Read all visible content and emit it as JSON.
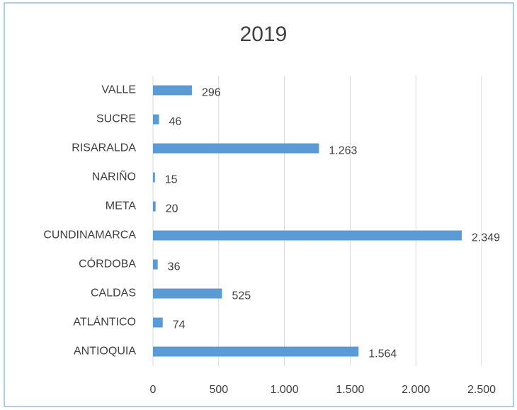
{
  "chart_data": {
    "type": "bar",
    "orientation": "horizontal",
    "title": "2019",
    "categories": [
      "ANTIOQUIA",
      "ATLÁNTICO",
      "CALDAS",
      "CÓRDOBA",
      "CUNDINAMARCA",
      "META",
      "NARIÑO",
      "RISARALDA",
      "SUCRE",
      "VALLE"
    ],
    "values": [
      1564,
      74,
      525,
      36,
      2349,
      20,
      15,
      1263,
      46,
      296
    ],
    "value_labels": [
      "1.564",
      "74",
      "525",
      "36",
      "2.349",
      "20",
      "15",
      "1.263",
      "46",
      "296"
    ],
    "color": "#5b9bd5",
    "xlim": [
      0,
      2500
    ],
    "xticks": [
      0,
      500,
      {
        "value": 1000,
        "label": "1.000"
      },
      {
        "value": 1500,
        "label": "1.500"
      },
      {
        "value": 2000,
        "label": "2.000"
      },
      {
        "value": 2500,
        "label": "2.500"
      }
    ],
    "grid": true
  }
}
